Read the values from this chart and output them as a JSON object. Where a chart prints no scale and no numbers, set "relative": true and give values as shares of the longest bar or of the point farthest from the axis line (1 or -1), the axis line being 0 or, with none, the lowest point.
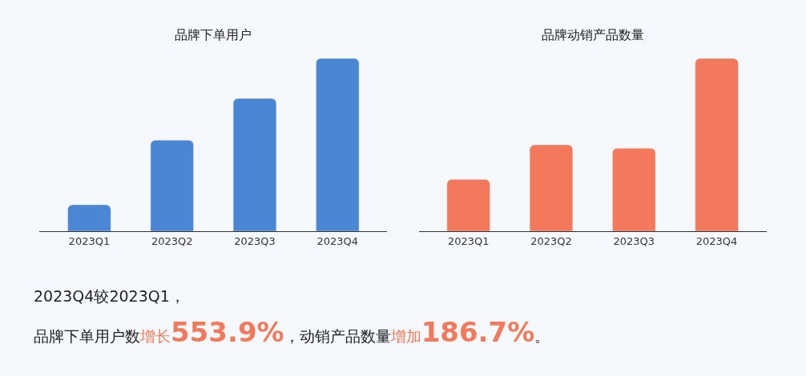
{
  "chart_data": [
    {
      "type": "bar",
      "title": "品牌下单用户",
      "categories": [
        "2023Q1",
        "2023Q2",
        "2023Q3",
        "2023Q4"
      ],
      "values": [
        0.153,
        0.527,
        0.768,
        1
      ],
      "color": "#4a86d4",
      "relative": true,
      "grid": false
    },
    {
      "type": "bar",
      "title": "品牌动销产品数量",
      "categories": [
        "2023Q1",
        "2023Q2",
        "2023Q3",
        "2023Q4"
      ],
      "values": [
        0.3,
        0.5,
        0.48,
        1
      ],
      "color": "#f2795b",
      "relative": true,
      "grid": false,
      "annotations": [
        "2023Q4较2023Q1，",
        "品牌下单用户数",
        "增长",
        "553.9%",
        "，动销产品数量",
        "增加",
        "186.7%",
        "。"
      ]
    }
  ]
}
